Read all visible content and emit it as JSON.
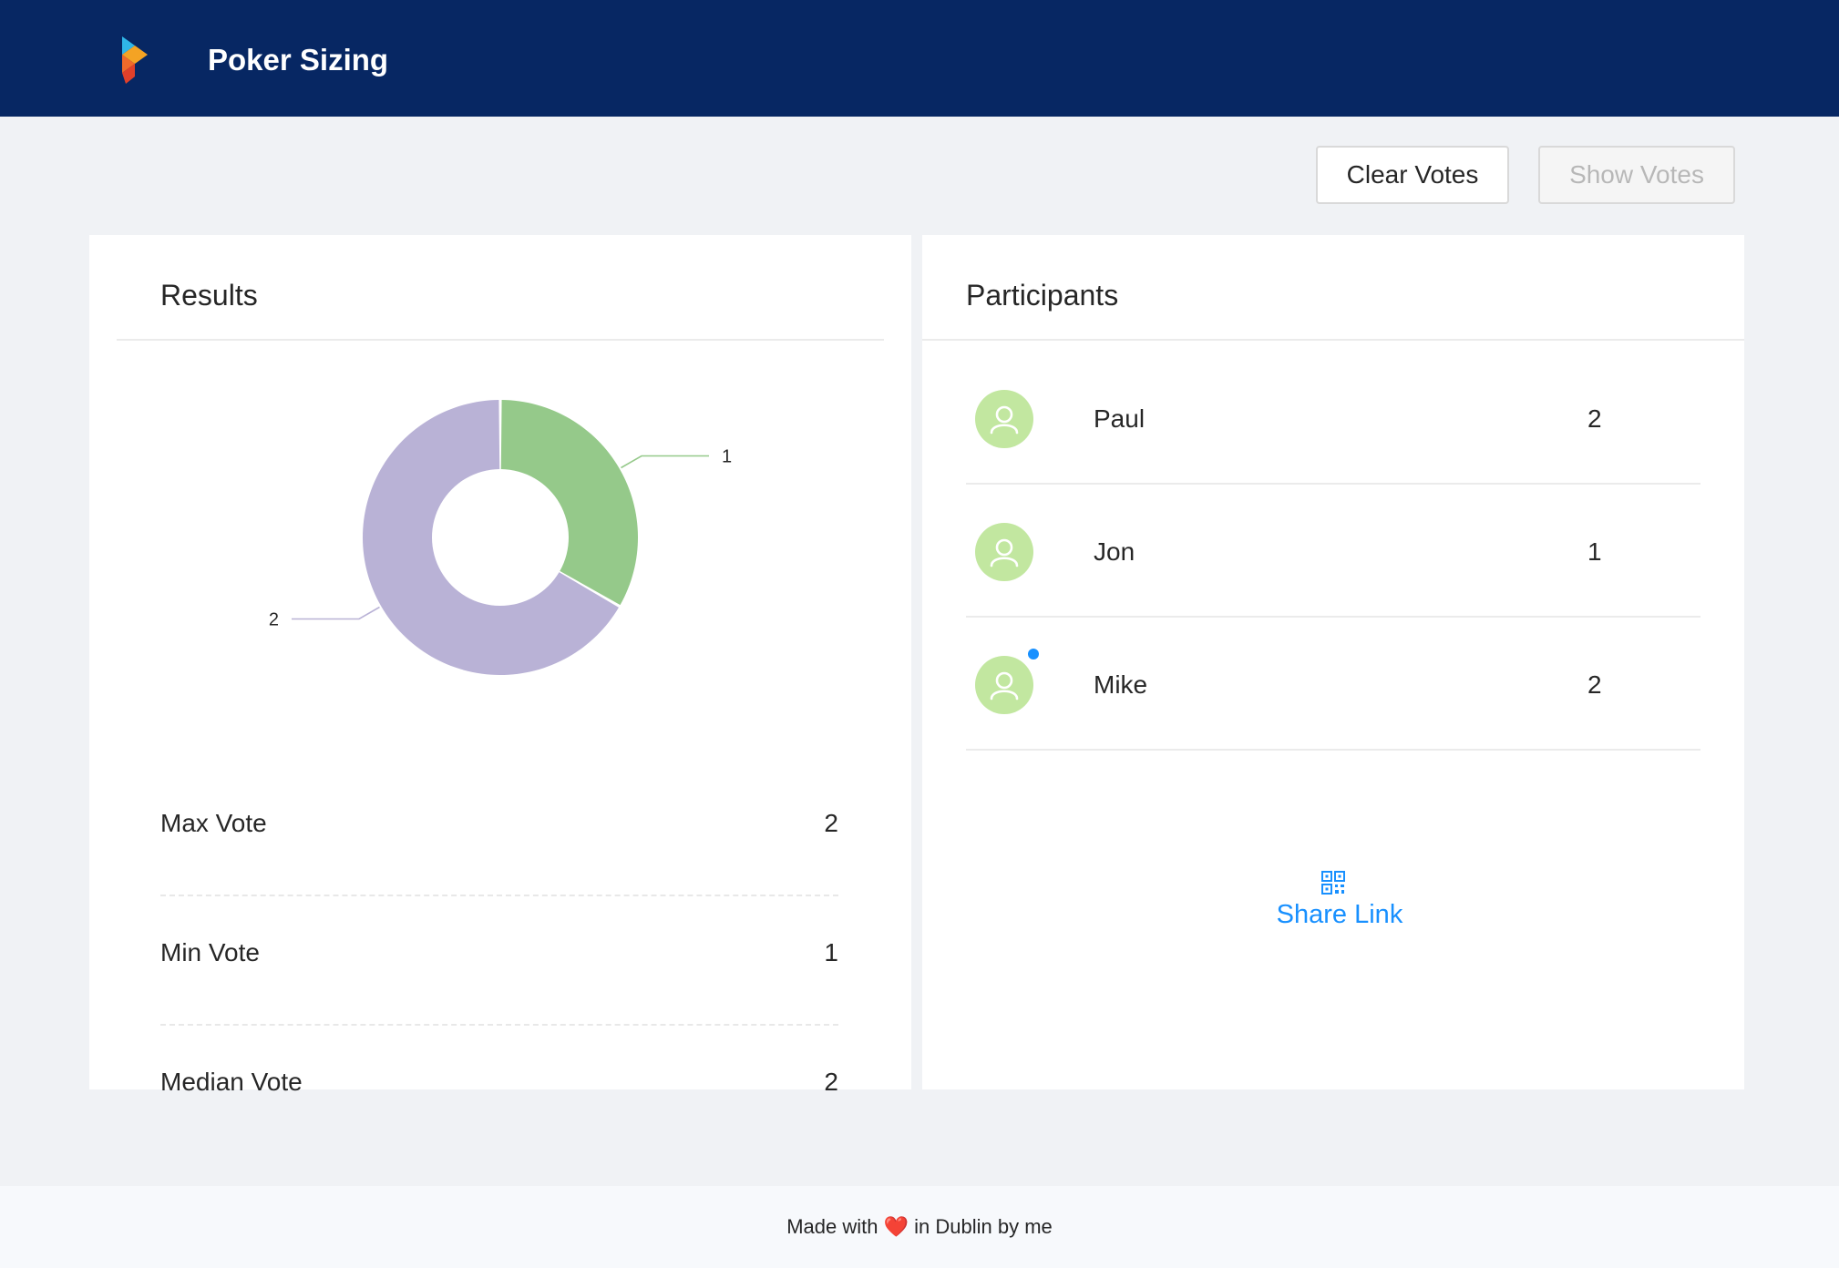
{
  "header": {
    "title": "Poker Sizing",
    "logo_icon": "app-logo-icon"
  },
  "toolbar": {
    "clear_label": "Clear Votes",
    "show_label": "Show Votes"
  },
  "results": {
    "title": "Results",
    "stats": [
      {
        "label": "Max Vote",
        "value": "2"
      },
      {
        "label": "Min Vote",
        "value": "1"
      },
      {
        "label": "Median Vote",
        "value": "2"
      }
    ]
  },
  "chart_data": {
    "type": "pie",
    "categories": [
      "1",
      "2"
    ],
    "values": [
      1,
      2
    ],
    "colors": [
      "#95c98a",
      "#b9b2d6"
    ],
    "title": ""
  },
  "participants": {
    "title": "Participants",
    "items": [
      {
        "name": "Paul",
        "vote": "2",
        "online": false
      },
      {
        "name": "Jon",
        "vote": "1",
        "online": false
      },
      {
        "name": "Mike",
        "vote": "2",
        "online": true
      }
    ],
    "share_label": "Share Link",
    "share_icon": "qrcode-icon"
  },
  "footer": {
    "prefix": "Made with",
    "heart": "❤️",
    "suffix": "in Dublin by me"
  },
  "colors": {
    "header_bg": "#072763",
    "accent": "#1890ff",
    "avatar_bg": "#c2e7a0"
  }
}
